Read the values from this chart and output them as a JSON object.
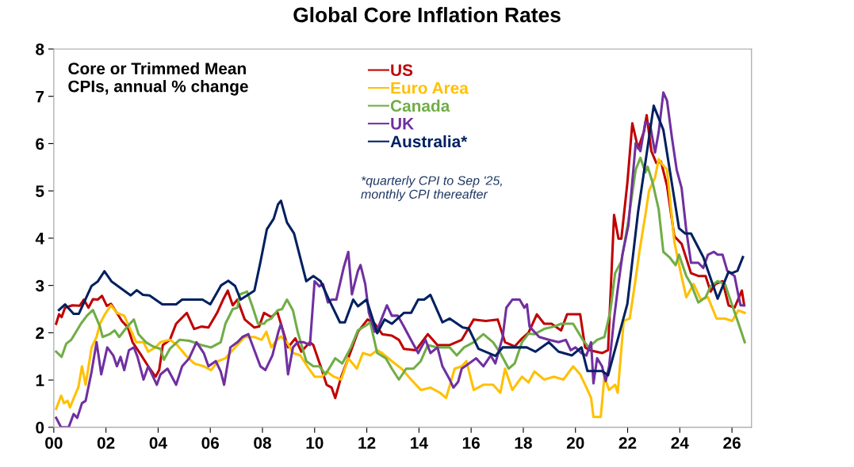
{
  "chart_data": {
    "type": "line",
    "title": "Global Core Inflation Rates",
    "annotations": [
      "Core or Trimmed Mean\nCPIs, annual % change",
      "*quarterly CPI to Sep '25,\nmonthly CPI thereafter"
    ],
    "xlim": [
      2000,
      2026.75
    ],
    "ylim": [
      0,
      8
    ],
    "xticks": [
      {
        "value": 2000,
        "label": "00"
      },
      {
        "value": 2002,
        "label": "02"
      },
      {
        "value": 2004,
        "label": "04"
      },
      {
        "value": 2006,
        "label": "06"
      },
      {
        "value": 2008,
        "label": "08"
      },
      {
        "value": 2010,
        "label": "10"
      },
      {
        "value": 2012,
        "label": "12"
      },
      {
        "value": 2014,
        "label": "14"
      },
      {
        "value": 2016,
        "label": "16"
      },
      {
        "value": 2018,
        "label": "18"
      },
      {
        "value": 2020,
        "label": "20"
      },
      {
        "value": 2022,
        "label": "22"
      },
      {
        "value": 2024,
        "label": "24"
      },
      {
        "value": 2026,
        "label": "26"
      }
    ],
    "yticks": [
      0,
      1,
      2,
      3,
      4,
      5,
      6,
      7,
      8
    ],
    "grid": false,
    "legend": "top",
    "marker": "none",
    "line_style": "solid",
    "series": [
      {
        "name": "US",
        "color": "#c00000",
        "x": [
          2000.09,
          2000.2,
          2000.3,
          2000.43,
          2000.71,
          2000.99,
          2001.15,
          2001.33,
          2001.5,
          2001.68,
          2001.85,
          2002.03,
          2002.19,
          2002.42,
          2002.61,
          2002.84,
          2003.02,
          2003.3,
          2003.62,
          2003.9,
          2004.04,
          2004.18,
          2004.45,
          2004.69,
          2005.1,
          2005.38,
          2005.66,
          2005.93,
          2006.26,
          2006.49,
          2006.67,
          2006.86,
          2007.04,
          2007.32,
          2007.69,
          2007.87,
          2008.06,
          2008.34,
          2008.57,
          2008.8,
          2008.98,
          2009.26,
          2009.49,
          2009.82,
          2009.95,
          2010.23,
          2010.46,
          2010.65,
          2010.79,
          2011.02,
          2011.29,
          2011.66,
          2012.03,
          2012.31,
          2012.59,
          2012.96,
          2013.23,
          2013.42,
          2013.88,
          2014.34,
          2014.71,
          2015.18,
          2015.64,
          2016.1,
          2016.56,
          2017.02,
          2017.3,
          2017.67,
          2017.95,
          2018.2,
          2018.52,
          2018.8,
          2019.08,
          2019.45,
          2019.68,
          2020.18,
          2020.37,
          2020.55,
          2021.02,
          2021.25,
          2021.48,
          2021.65,
          2021.76,
          2021.99,
          2022.18,
          2022.4,
          2022.63,
          2022.73,
          2022.91,
          2023.1,
          2023.28,
          2023.51,
          2023.79,
          2024.07,
          2024.43,
          2024.71,
          2024.99,
          2025.18,
          2025.36,
          2025.64,
          2025.87,
          2026.1,
          2026.38,
          2026.47
        ],
        "values": [
          2.19,
          2.39,
          2.33,
          2.53,
          2.58,
          2.57,
          2.7,
          2.53,
          2.71,
          2.7,
          2.78,
          2.57,
          2.61,
          2.42,
          2.25,
          2.11,
          1.8,
          1.57,
          1.29,
          1.07,
          1.21,
          1.74,
          1.85,
          2.19,
          2.42,
          2.08,
          2.13,
          2.11,
          2.42,
          2.7,
          2.89,
          2.58,
          2.7,
          2.28,
          2.11,
          2.13,
          2.42,
          2.33,
          2.44,
          2.02,
          1.69,
          1.88,
          1.6,
          1.8,
          1.74,
          1.29,
          0.9,
          0.84,
          0.62,
          1.07,
          1.46,
          2.02,
          2.28,
          2.19,
          1.97,
          1.94,
          1.85,
          1.66,
          1.63,
          1.97,
          1.74,
          1.74,
          1.85,
          2.28,
          2.25,
          2.28,
          1.8,
          1.71,
          1.88,
          2.0,
          2.39,
          2.19,
          2.19,
          2.05,
          2.39,
          2.39,
          1.69,
          1.63,
          1.57,
          1.63,
          4.49,
          3.99,
          3.99,
          5.17,
          6.43,
          5.9,
          6.26,
          6.6,
          5.84,
          5.59,
          5.62,
          5.11,
          4.04,
          3.88,
          3.26,
          3.2,
          3.2,
          2.87,
          3.03,
          3.09,
          2.58,
          2.53,
          2.89,
          2.58
        ]
      },
      {
        "name": "Euro Area",
        "color": "#ffc000",
        "x": [
          2000.09,
          2000.28,
          2000.39,
          2000.53,
          2000.62,
          2000.85,
          2000.94,
          2001.08,
          2001.22,
          2001.45,
          2001.64,
          2001.77,
          2001.96,
          2002.19,
          2002.42,
          2002.7,
          2002.98,
          2003.16,
          2003.44,
          2003.62,
          2003.9,
          2004.09,
          2004.45,
          2004.73,
          2005.06,
          2005.38,
          2005.75,
          2006.03,
          2006.3,
          2006.58,
          2006.95,
          2007.32,
          2007.69,
          2007.97,
          2008.15,
          2008.34,
          2008.52,
          2008.71,
          2008.94,
          2009.17,
          2009.45,
          2009.72,
          2010.0,
          2010.28,
          2010.46,
          2010.74,
          2011.02,
          2011.29,
          2011.62,
          2011.85,
          2012.13,
          2012.4,
          2012.59,
          2012.96,
          2013.33,
          2013.7,
          2014.07,
          2014.44,
          2014.81,
          2015.04,
          2015.37,
          2015.64,
          2015.82,
          2016.1,
          2016.47,
          2016.84,
          2017.12,
          2017.3,
          2017.58,
          2017.95,
          2018.2,
          2018.43,
          2018.8,
          2019.17,
          2019.54,
          2019.91,
          2020.18,
          2020.42,
          2020.6,
          2020.69,
          2020.97,
          2021.11,
          2021.29,
          2021.52,
          2021.62,
          2021.85,
          2022.08,
          2022.31,
          2022.45,
          2022.68,
          2022.82,
          2023.05,
          2023.19,
          2023.33,
          2023.51,
          2023.79,
          2024.02,
          2024.25,
          2024.53,
          2024.81,
          2025.08,
          2025.41,
          2025.73,
          2026.01,
          2026.24,
          2026.49
        ],
        "values": [
          0.39,
          0.67,
          0.51,
          0.56,
          0.42,
          0.73,
          0.84,
          1.29,
          0.9,
          1.69,
          1.91,
          2.19,
          2.39,
          2.58,
          2.42,
          2.36,
          2.02,
          1.8,
          1.8,
          1.6,
          1.69,
          1.8,
          1.85,
          1.74,
          1.52,
          1.35,
          1.29,
          1.21,
          1.4,
          1.46,
          1.69,
          1.91,
          1.91,
          1.85,
          2.02,
          1.69,
          1.83,
          1.92,
          1.8,
          1.57,
          1.52,
          1.29,
          1.07,
          1.07,
          1.18,
          1.07,
          1.01,
          1.46,
          1.24,
          1.57,
          1.52,
          1.63,
          1.57,
          1.4,
          1.24,
          1.01,
          0.79,
          0.84,
          0.73,
          0.62,
          1.24,
          1.29,
          1.4,
          0.79,
          0.9,
          0.9,
          0.73,
          1.24,
          0.79,
          1.07,
          0.95,
          1.18,
          1.01,
          1.07,
          1.01,
          1.29,
          1.12,
          0.84,
          0.62,
          0.22,
          0.22,
          1.07,
          0.79,
          0.9,
          0.73,
          2.25,
          2.3,
          3.15,
          3.71,
          4.49,
          5.0,
          5.28,
          5.67,
          5.56,
          5.45,
          3.93,
          3.31,
          2.75,
          3.03,
          2.7,
          2.75,
          2.3,
          2.3,
          2.25,
          2.47,
          2.42
        ]
      },
      {
        "name": "Canada",
        "color": "#70ad47",
        "x": [
          2000.09,
          2000.3,
          2000.48,
          2000.67,
          2001.04,
          2001.27,
          2001.5,
          2001.77,
          2001.87,
          2002.14,
          2002.33,
          2002.51,
          2002.79,
          2003.07,
          2003.25,
          2003.53,
          2003.81,
          2004.09,
          2004.22,
          2004.45,
          2004.82,
          2005.19,
          2005.66,
          2006.03,
          2006.4,
          2006.58,
          2006.86,
          2007.04,
          2007.13,
          2007.41,
          2007.6,
          2007.83,
          2008.06,
          2008.15,
          2008.34,
          2008.57,
          2008.75,
          2008.94,
          2009.17,
          2009.35,
          2009.68,
          2009.95,
          2010.18,
          2010.42,
          2010.79,
          2011.06,
          2011.39,
          2011.66,
          2011.99,
          2012.13,
          2012.4,
          2012.73,
          2012.96,
          2013.23,
          2013.51,
          2013.79,
          2014.07,
          2014.34,
          2014.71,
          2015.18,
          2015.45,
          2015.73,
          2016.1,
          2016.47,
          2016.84,
          2017.12,
          2017.44,
          2017.67,
          2017.95,
          2018.2,
          2018.43,
          2018.8,
          2019.17,
          2019.45,
          2019.91,
          2020.28,
          2020.51,
          2020.83,
          2021.11,
          2021.34,
          2021.52,
          2021.76,
          2022.03,
          2022.31,
          2022.49,
          2022.68,
          2022.77,
          2022.96,
          2023.19,
          2023.37,
          2023.6,
          2023.84,
          2023.97,
          2024.25,
          2024.43,
          2024.71,
          2024.99,
          2025.18,
          2025.45,
          2025.73,
          2026.01,
          2026.29,
          2026.49
        ],
        "values": [
          1.6,
          1.49,
          1.77,
          1.85,
          2.19,
          2.36,
          2.48,
          2.13,
          1.91,
          1.97,
          2.05,
          1.91,
          2.11,
          2.28,
          1.97,
          1.8,
          1.71,
          1.66,
          1.43,
          1.66,
          1.85,
          1.83,
          1.74,
          1.69,
          1.8,
          2.19,
          2.5,
          2.53,
          2.81,
          2.87,
          2.58,
          2.19,
          2.19,
          2.25,
          2.3,
          2.47,
          2.5,
          2.7,
          2.47,
          2.02,
          1.4,
          1.29,
          1.29,
          1.12,
          1.46,
          1.35,
          1.69,
          2.05,
          2.16,
          2.22,
          1.57,
          1.46,
          1.24,
          1.01,
          1.24,
          1.24,
          1.4,
          1.74,
          1.69,
          1.69,
          1.52,
          1.69,
          1.8,
          1.97,
          1.8,
          1.57,
          1.24,
          1.35,
          1.8,
          1.98,
          1.97,
          2.08,
          2.13,
          2.19,
          2.19,
          1.85,
          1.69,
          1.85,
          1.91,
          2.47,
          3.26,
          3.51,
          4.38,
          5.45,
          5.7,
          5.39,
          5.51,
          5.17,
          4.61,
          3.71,
          3.6,
          3.43,
          3.65,
          3.2,
          3.03,
          2.64,
          2.75,
          2.98,
          3.09,
          3.03,
          2.58,
          2.13,
          1.8
        ]
      },
      {
        "name": "UK",
        "color": "#7030a0",
        "x": [
          2000.09,
          2000.28,
          2000.57,
          2000.76,
          2000.9,
          2001.08,
          2001.22,
          2001.45,
          2001.64,
          2001.82,
          2002.05,
          2002.28,
          2002.42,
          2002.56,
          2002.7,
          2002.88,
          2003.07,
          2003.21,
          2003.44,
          2003.62,
          2003.95,
          2004.09,
          2004.36,
          2004.69,
          2004.92,
          2005.19,
          2005.47,
          2005.75,
          2005.93,
          2006.21,
          2006.4,
          2006.53,
          2006.77,
          2007.04,
          2007.23,
          2007.46,
          2007.69,
          2007.92,
          2008.11,
          2008.38,
          2008.61,
          2008.71,
          2008.84,
          2008.98,
          2009.17,
          2009.35,
          2009.58,
          2009.82,
          2010.0,
          2010.18,
          2010.32,
          2010.51,
          2010.65,
          2010.83,
          2011.11,
          2011.29,
          2011.43,
          2011.66,
          2011.76,
          2011.94,
          2012.08,
          2012.31,
          2012.45,
          2012.77,
          2012.96,
          2013.19,
          2013.42,
          2013.74,
          2013.97,
          2014.25,
          2014.44,
          2014.71,
          2014.9,
          2015.18,
          2015.32,
          2015.5,
          2015.64,
          2015.92,
          2016.19,
          2016.47,
          2016.75,
          2016.93,
          2017.21,
          2017.35,
          2017.58,
          2017.86,
          2018.04,
          2018.14,
          2018.24,
          2018.61,
          2018.98,
          2019.35,
          2019.63,
          2019.82,
          2020.0,
          2020.23,
          2020.42,
          2020.6,
          2020.69,
          2020.83,
          2021.02,
          2021.16,
          2021.29,
          2021.48,
          2021.62,
          2021.8,
          2022.03,
          2022.31,
          2022.49,
          2022.68,
          2022.86,
          2023.05,
          2023.19,
          2023.37,
          2023.51,
          2023.7,
          2023.88,
          2024.07,
          2024.25,
          2024.43,
          2024.71,
          2024.9,
          2025.08,
          2025.31,
          2025.45,
          2025.64,
          2025.82,
          2026.1,
          2026.24,
          2026.33,
          2026.47
        ],
        "values": [
          0.2,
          0.0,
          0.0,
          0.28,
          0.2,
          0.51,
          0.56,
          1.18,
          1.8,
          1.12,
          1.69,
          1.52,
          1.29,
          1.49,
          1.21,
          1.63,
          1.69,
          1.49,
          1.01,
          1.29,
          0.9,
          1.12,
          1.24,
          0.9,
          1.29,
          1.46,
          1.8,
          1.57,
          1.29,
          1.4,
          1.18,
          0.9,
          1.69,
          1.8,
          1.91,
          1.97,
          1.63,
          1.29,
          1.21,
          1.52,
          2.02,
          2.19,
          1.91,
          1.12,
          1.69,
          1.8,
          1.8,
          1.74,
          3.09,
          2.98,
          3.03,
          2.64,
          2.7,
          2.7,
          3.37,
          3.71,
          2.81,
          3.31,
          3.43,
          3.03,
          2.42,
          2.02,
          2.13,
          2.58,
          2.36,
          2.36,
          2.13,
          1.8,
          1.57,
          1.85,
          1.57,
          1.69,
          1.29,
          1.01,
          0.84,
          0.96,
          1.24,
          1.35,
          1.46,
          1.29,
          1.52,
          1.35,
          1.91,
          2.53,
          2.7,
          2.7,
          2.53,
          2.6,
          2.13,
          1.91,
          1.85,
          1.8,
          1.85,
          1.63,
          1.69,
          1.57,
          1.52,
          1.8,
          0.93,
          1.46,
          1.29,
          0.98,
          1.29,
          2.3,
          2.92,
          3.65,
          4.27,
          6.01,
          5.84,
          6.46,
          6.4,
          5.81,
          6.24,
          7.08,
          6.91,
          6.12,
          5.45,
          5.06,
          4.16,
          3.48,
          3.48,
          3.37,
          3.65,
          3.71,
          3.65,
          3.65,
          3.31,
          3.2,
          2.81,
          2.58,
          2.58
        ]
      },
      {
        "name": "Australia*",
        "color": "#002060",
        "x": [
          2000.2,
          2000.43,
          2000.76,
          2000.96,
          2001.45,
          2001.68,
          2001.94,
          2002.22,
          2002.7,
          2002.95,
          2003.18,
          2003.42,
          2003.67,
          2004.16,
          2004.69,
          2004.92,
          2005.7,
          2006.0,
          2006.41,
          2006.69,
          2006.95,
          2007.16,
          2007.69,
          2007.92,
          2008.17,
          2008.43,
          2008.6,
          2008.71,
          2008.94,
          2009.21,
          2009.68,
          2009.95,
          2010.23,
          2010.55,
          2010.97,
          2011.16,
          2011.48,
          2011.66,
          2011.99,
          2012.4,
          2012.68,
          2012.96,
          2013.42,
          2013.7,
          2013.97,
          2014.2,
          2014.44,
          2014.9,
          2015.18,
          2015.68,
          2015.91,
          2016.28,
          2016.93,
          2017.21,
          2018.13,
          2018.47,
          2018.98,
          2019.35,
          2019.86,
          2020.23,
          2020.46,
          2021.02,
          2021.25,
          2021.99,
          2022.4,
          2023.0,
          2023.37,
          2023.97,
          2024.2,
          2024.43,
          2024.9,
          2025.45,
          2025.87,
          2025.99,
          2026.21,
          2026.42
        ],
        "values": [
          2.48,
          2.6,
          2.4,
          2.4,
          2.99,
          3.08,
          3.3,
          3.08,
          2.89,
          2.79,
          2.9,
          2.8,
          2.79,
          2.6,
          2.6,
          2.7,
          2.7,
          2.6,
          3.0,
          3.1,
          2.99,
          2.7,
          2.89,
          3.49,
          4.19,
          4.41,
          4.72,
          4.79,
          4.33,
          4.1,
          3.09,
          3.2,
          3.09,
          2.7,
          2.22,
          2.22,
          2.7,
          2.56,
          2.7,
          1.99,
          2.28,
          2.19,
          2.42,
          2.42,
          2.7,
          2.7,
          2.8,
          2.22,
          2.3,
          2.11,
          2.09,
          1.66,
          1.51,
          1.69,
          1.69,
          1.6,
          1.8,
          1.6,
          1.52,
          1.69,
          1.19,
          1.19,
          1.1,
          2.61,
          4.55,
          6.8,
          6.29,
          4.21,
          4.1,
          4.1,
          3.6,
          2.72,
          3.29,
          3.26,
          3.31,
          3.6
        ]
      }
    ]
  }
}
